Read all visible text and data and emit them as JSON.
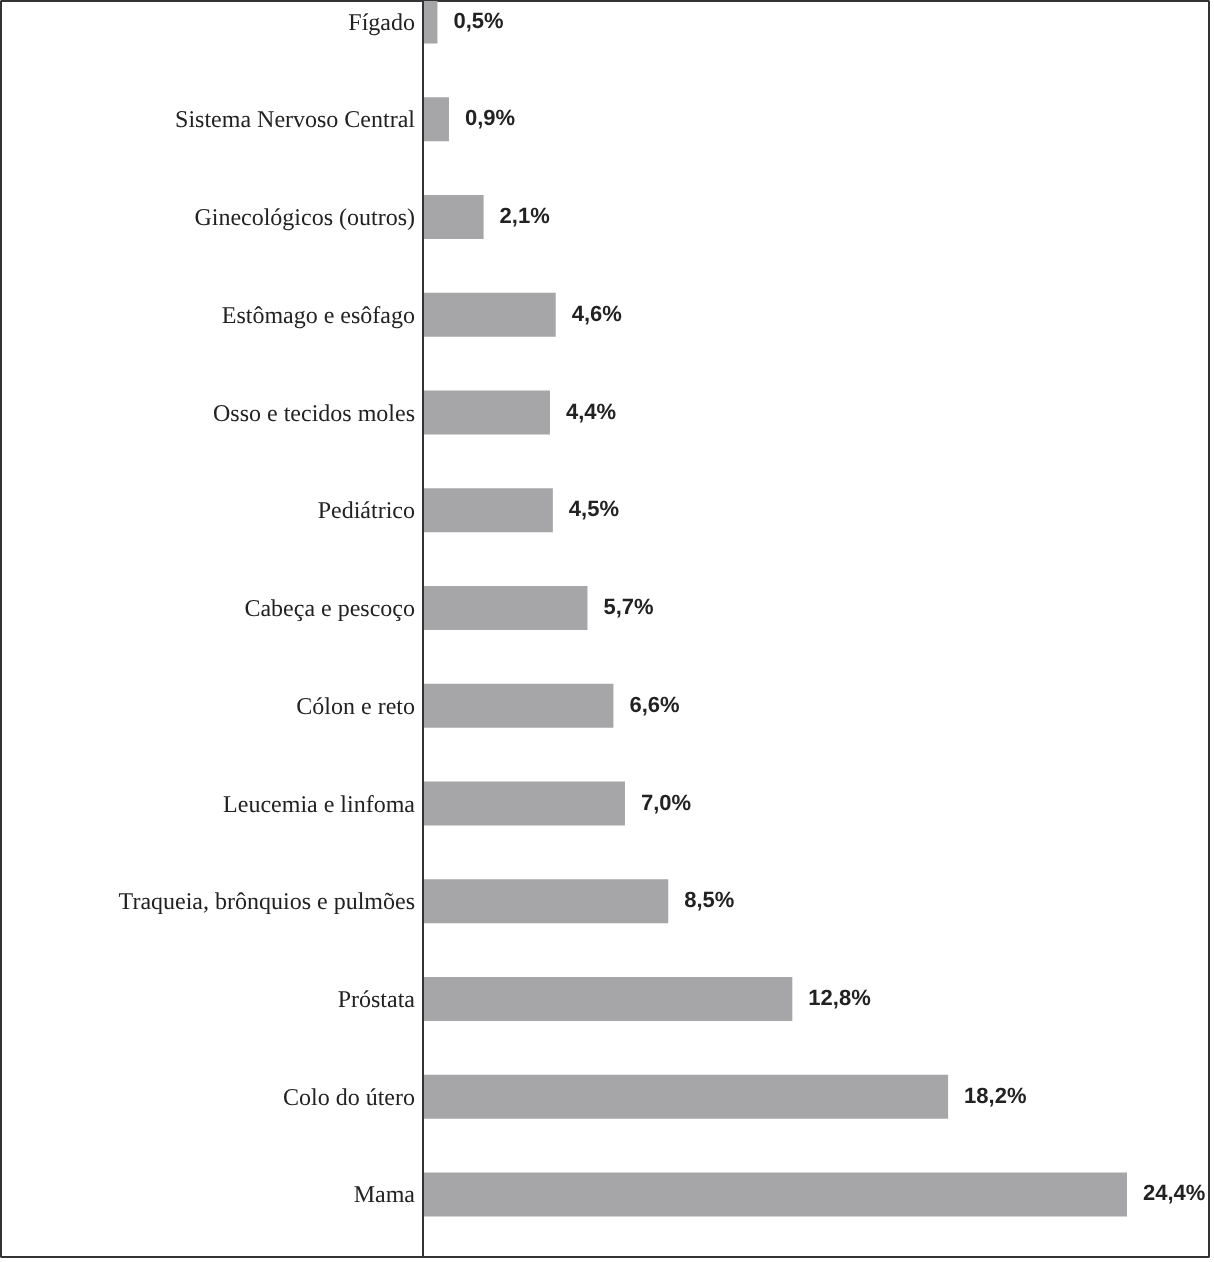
{
  "chart_data": {
    "type": "bar",
    "orientation": "horizontal",
    "categories": [
      "Fígado",
      "Sistema Nervoso Central",
      "Ginecológicos (outros)",
      "Estômago e esôfago",
      "Osso e tecidos moles",
      "Pediátrico",
      "Cabeça e pescoço",
      "Cólon e reto",
      "Leucemia e linfoma",
      "Traqueia, brônquios e pulmões",
      "Próstata",
      "Colo do útero",
      "Mama"
    ],
    "values": [
      0.5,
      0.9,
      2.1,
      4.6,
      4.4,
      4.5,
      5.7,
      6.6,
      7.0,
      8.5,
      12.8,
      18.2,
      24.4
    ],
    "value_labels": [
      "0,5%",
      "0,9%",
      "2,1%",
      "4,6%",
      "4,4%",
      "4,5%",
      "5,7%",
      "6,6%",
      "7,0%",
      "8,5%",
      "12,8%",
      "18,2%",
      "24,4%"
    ],
    "color": "#a6a6a8"
  }
}
